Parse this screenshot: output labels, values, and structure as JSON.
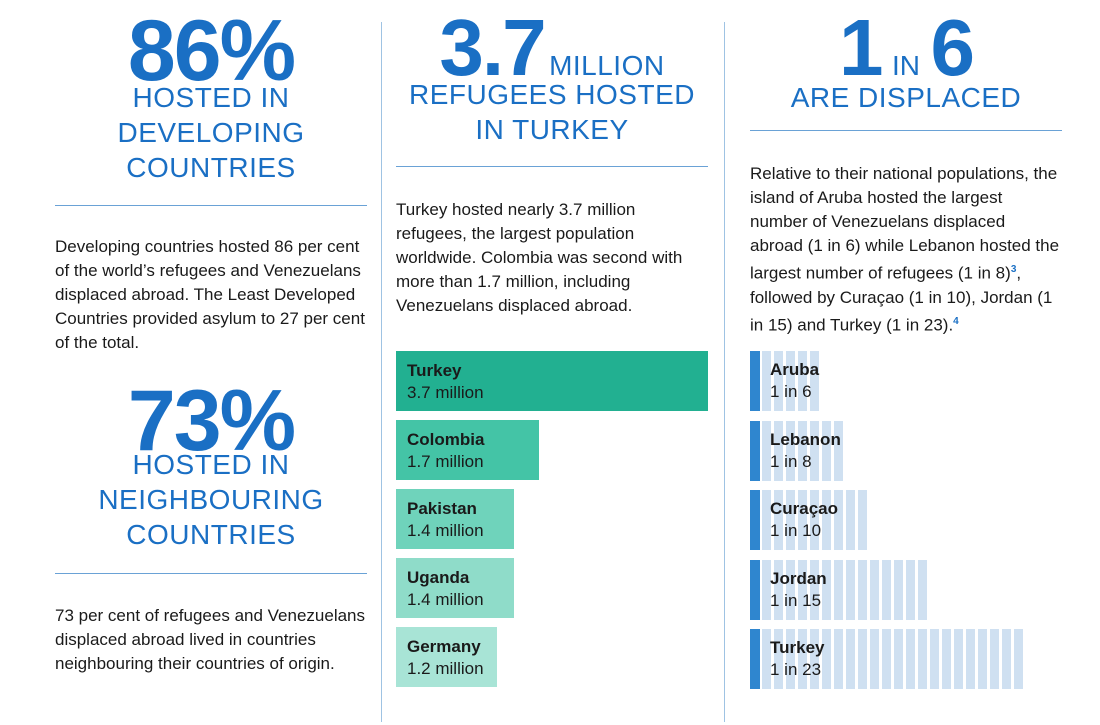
{
  "left": {
    "stat1": {
      "value": "86%",
      "caption_lines": [
        "HOSTED IN",
        "DEVELOPING",
        "COUNTRIES"
      ]
    },
    "text1": "Developing countries hosted 86 per cent of the world’s refugees and Venezuelans displaced abroad. The Least Developed Countries provided asylum to 27 per cent of the total.",
    "stat2": {
      "value": "73%",
      "caption_lines": [
        "HOSTED IN",
        "NEIGHBOURING",
        "COUNTRIES"
      ]
    },
    "text2": "73 per cent of refugees and Venezuelans displaced abroad lived in countries neighbouring their countries of origin."
  },
  "middle": {
    "stat_value": "3.7",
    "stat_unit": "MILLION",
    "caption_lines": [
      "REFUGEES HOSTED",
      "IN TURKEY"
    ],
    "text": "Turkey hosted nearly 3.7 million refugees, the largest population worldwide. Colombia was second with more than 1.7 million, including Venezuelans displaced abroad."
  },
  "right": {
    "stat_num1": "1",
    "stat_in": "IN",
    "stat_num2": "6",
    "caption_lines": [
      "ARE DISPLACED"
    ],
    "text_part1": "Relative to their national populations, the island of Aruba hosted the largest number of Venezuelans displaced abroad (1 in 6) while Lebanon hosted the largest number of refugees (1 in 8)",
    "sup1": "3",
    "text_part2": ", followed by Curaçao (1 in 10), Jordan (1 in 15) and Turkey (1 in 23).",
    "sup2": "4"
  },
  "colors": {
    "accent_blue": "#1a6fc4",
    "bars": [
      "#22b091",
      "#44c4a6",
      "#6fd3bb",
      "#8fdcc9",
      "#a8e4d6"
    ],
    "ratio_accent": "#2f86cf",
    "ratio_stripe": "#cfe0f1"
  },
  "chart_data": [
    {
      "type": "bar",
      "orientation": "horizontal",
      "categories": [
        "Turkey",
        "Colombia",
        "Pakistan",
        "Uganda",
        "Germany"
      ],
      "values": [
        3.7,
        1.7,
        1.4,
        1.4,
        1.2
      ],
      "value_labels": [
        "3.7 million",
        "1.7 million",
        "1.4 million",
        "1.4 million",
        "1.2 million"
      ]
    },
    {
      "type": "bar",
      "orientation": "horizontal",
      "categories": [
        "Aruba",
        "Lebanon",
        "Curaçao",
        "Jordan",
        "Turkey"
      ],
      "values": [
        6,
        8,
        10,
        15,
        23
      ],
      "value_labels": [
        "1 in 6",
        "1 in 8",
        "1 in 10",
        "1 in 15",
        "1 in 23"
      ]
    }
  ]
}
